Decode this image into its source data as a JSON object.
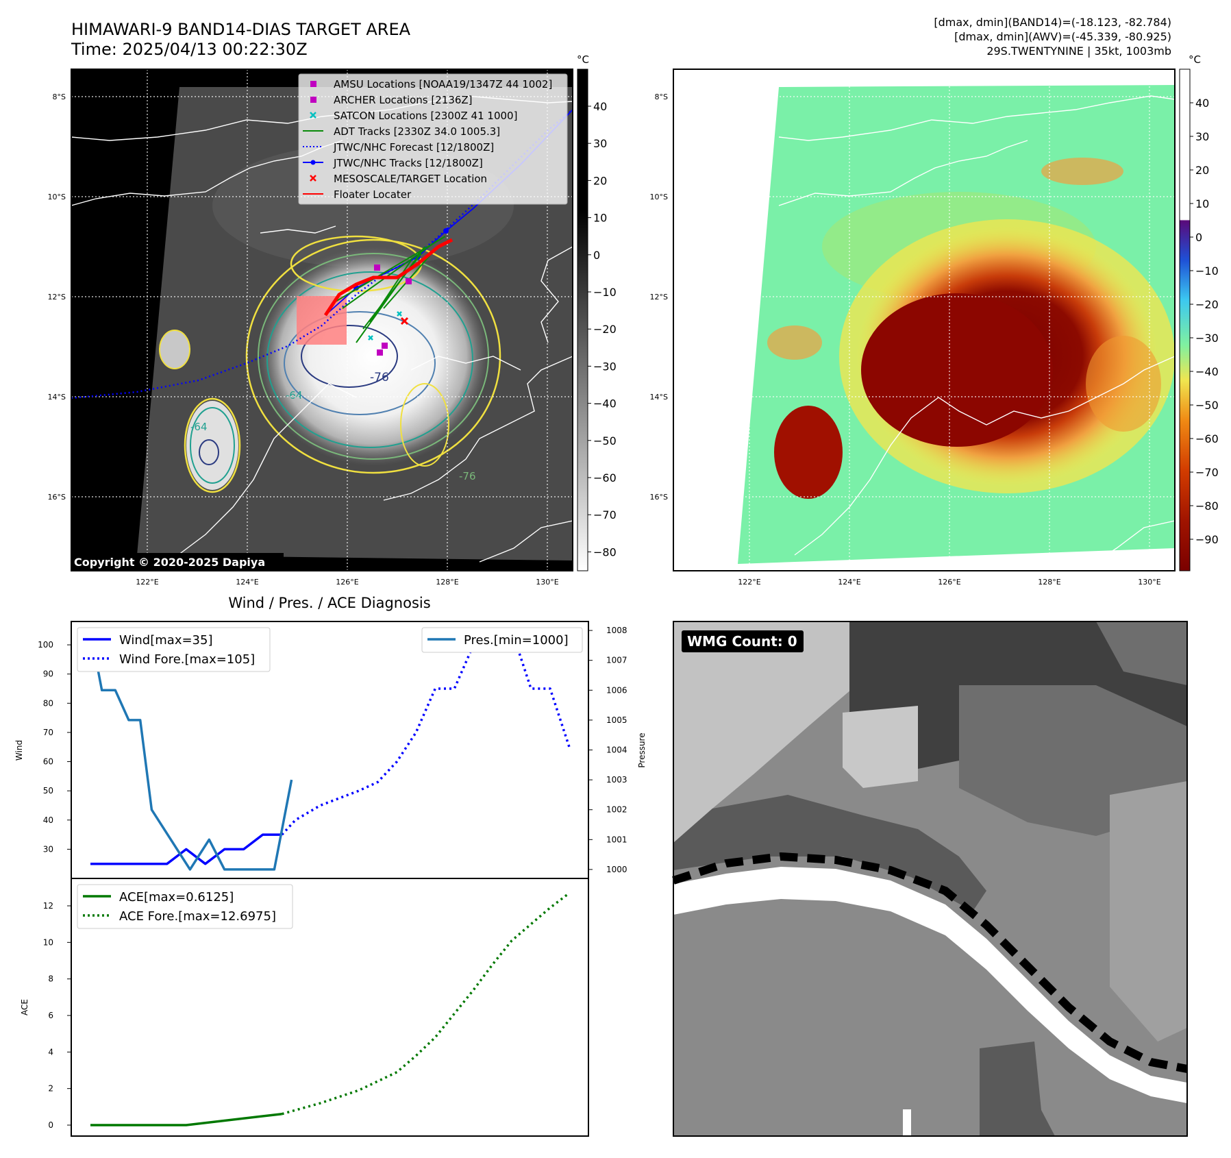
{
  "header": {
    "title_line1": "HIMAWARI-9 BAND14-DIAS TARGET AREA",
    "title_line2": "Time: 2025/04/13 00:22:30Z",
    "info_line1": "[dmax, dmin](BAND14)=(-18.123, -82.784)",
    "info_line2": "[dmax, dmin](AWV)=(-45.339, -80.925)",
    "info_line3": "29S.TWENTYNINE | 35kt, 1003mb"
  },
  "maps": {
    "lat_labels": [
      "8°S",
      "10°S",
      "12°S",
      "14°S",
      "16°S"
    ],
    "lon_labels": [
      "122°E",
      "124°E",
      "126°E",
      "128°E",
      "130°E"
    ],
    "copyright": "Copyright © 2020-2025 Dapiya",
    "contour_labels": [
      "-76",
      "-64",
      "-64",
      "-76"
    ],
    "ir_colorbar": {
      "unit": "°C",
      "ticks": [
        "40",
        "30",
        "20",
        "10",
        "0",
        "−10",
        "−20",
        "−30",
        "−40",
        "−50",
        "−60",
        "−70",
        "−80"
      ]
    },
    "color_colorbar": {
      "unit": "°C",
      "ticks": [
        "40",
        "30",
        "20",
        "10",
        "0",
        "−10",
        "−20",
        "−30",
        "−40",
        "−50",
        "−60",
        "−70",
        "−80",
        "−90"
      ]
    },
    "legend": [
      "AMSU Locations [NOAA19/1347Z 44 1002]",
      "ARCHER Locations [2136Z]",
      "SATCON Locations [2300Z 41 1000]",
      "ADT Tracks [2330Z 34.0 1005.3]",
      "JTWC/NHC Forecast [12/1800Z]",
      "JTWC/NHC Tracks [12/1800Z]",
      "MESOSCALE/TARGET Location",
      "Floater Locater"
    ],
    "colors": {
      "amsu": "#c000c0",
      "archer": "#c000c0",
      "satcon": "#00c0c0",
      "adt": "#0a8a0a",
      "jtwc": "#0000ff",
      "target": "#ff0000",
      "floater": "#ff0000"
    }
  },
  "wmg": {
    "label": "WMG Count: 0"
  },
  "chart_data": [
    {
      "type": "line",
      "title": "Wind / Pres. / ACE Diagnosis",
      "ylabel": "Wind",
      "ylabel_right": "Pressure",
      "ylim": [
        20,
        108
      ],
      "ylim_right": [
        999.7,
        1008.3
      ],
      "yticks": [
        30,
        40,
        50,
        60,
        70,
        80,
        90,
        100
      ],
      "yticks_right": [
        1000,
        1001,
        1002,
        1003,
        1004,
        1005,
        1006,
        1007,
        1008
      ],
      "legend_left": [
        "Wind[max=35]",
        "Wind Fore.[max=105]"
      ],
      "legend_right": [
        "Pres.[min=1000]"
      ],
      "series": [
        {
          "name": "Wind[max=35]",
          "color": "#0000ff",
          "style": "solid",
          "axis": "left",
          "x": [
            0,
            1,
            2,
            3,
            4,
            5,
            6,
            7,
            8,
            9,
            10
          ],
          "values": [
            25,
            25,
            25,
            25,
            25,
            30,
            25,
            30,
            30,
            35,
            35
          ]
        },
        {
          "name": "Wind Fore.[max=105]",
          "color": "#0000ff",
          "style": "dotted",
          "axis": "left",
          "x": [
            10,
            10.7,
            12,
            14,
            15,
            16,
            17,
            18,
            19,
            20,
            21,
            22,
            23,
            24,
            25
          ],
          "values": [
            35,
            40,
            45,
            50,
            53,
            60,
            70,
            85,
            85,
            100,
            105,
            105,
            85,
            85,
            65
          ]
        },
        {
          "name": "Pres.[min=1000]",
          "color": "#1f77b4",
          "style": "solid",
          "axis": "right",
          "x": [
            0,
            0.6,
            1.3,
            2,
            2.6,
            3.2,
            4.2,
            5.2,
            6.2,
            7,
            8,
            9,
            9.6,
            10.5
          ],
          "values": [
            1008,
            1006,
            1006,
            1005,
            1005,
            1002,
            1001,
            1000,
            1001,
            1000,
            1000,
            1000,
            1000,
            1003
          ]
        }
      ]
    },
    {
      "type": "line",
      "ylabel": "ACE",
      "ylim": [
        -0.6,
        13.5
      ],
      "yticks": [
        0,
        2,
        4,
        6,
        8,
        10,
        12
      ],
      "legend": [
        "ACE[max=0.6125]",
        "ACE Fore.[max=12.6975]"
      ],
      "series": [
        {
          "name": "ACE[max=0.6125]",
          "color": "#007800",
          "style": "solid",
          "x": [
            0,
            5,
            10
          ],
          "values": [
            0,
            0,
            0.6125
          ]
        },
        {
          "name": "ACE Fore.[max=12.6975]",
          "color": "#007800",
          "style": "dotted",
          "x": [
            10,
            12,
            14,
            16,
            17,
            18,
            19,
            20,
            21,
            22,
            23,
            24,
            25
          ],
          "values": [
            0.6125,
            1.2,
            1.9,
            2.9,
            3.8,
            4.8,
            6.1,
            7.4,
            8.8,
            10.1,
            11.0,
            11.9,
            12.6975
          ]
        }
      ]
    }
  ]
}
